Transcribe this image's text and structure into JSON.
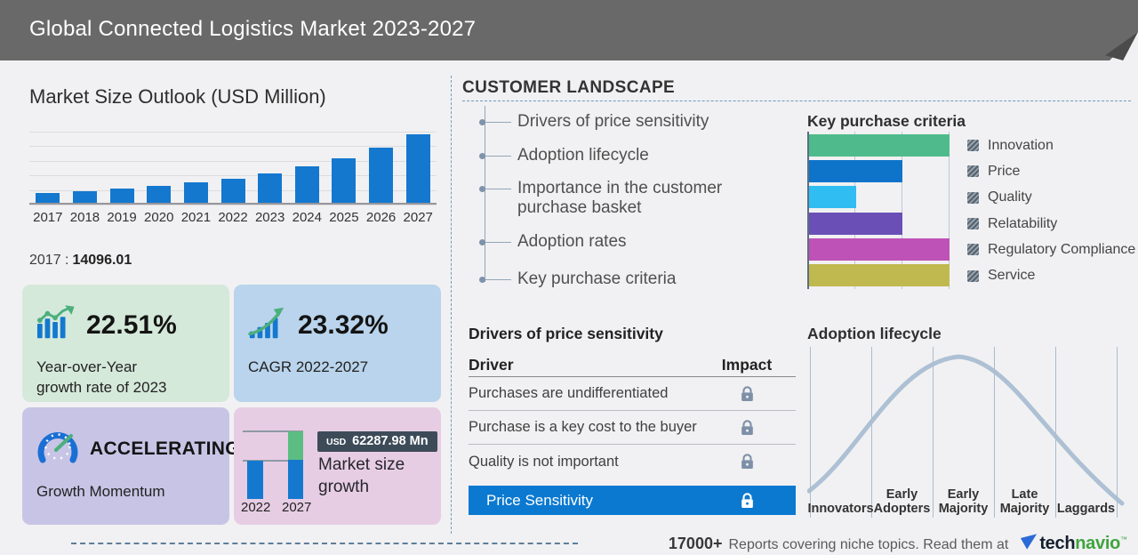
{
  "header": {
    "title": "Global Connected Logistics Market 2023-2027"
  },
  "market_size": {
    "title": "Market Size Outlook (USD Million)",
    "base_year_label": "2017 :",
    "base_year_value": "14096.01"
  },
  "chart_data": [
    {
      "id": "market-size-outlook",
      "type": "bar",
      "title": "Market Size Outlook (USD Million)",
      "categories": [
        "2017",
        "2018",
        "2019",
        "2020",
        "2021",
        "2022",
        "2023",
        "2024",
        "2025",
        "2026",
        "2027"
      ],
      "values": [
        14096.01,
        16600,
        20400,
        23800,
        28300,
        33633,
        41204,
        50600,
        62400,
        77500,
        95921
      ],
      "value_note": "2017 labeled as 14096.01; later years estimated from bar heights",
      "bar_color": "#1478cf",
      "grid": true,
      "xlabel": "",
      "ylabel": "USD Million"
    },
    {
      "id": "key-purchase-criteria",
      "type": "bar",
      "orientation": "horizontal",
      "title": "Key purchase criteria",
      "categories": [
        "Innovation",
        "Price",
        "Quality",
        "Relatability",
        "Regulatory Compliance",
        "Service"
      ],
      "values": [
        3,
        2,
        1,
        2,
        3,
        3
      ],
      "max_value": 3,
      "value_note": "relative importance read from bar lengths (1=short, 3=full width)",
      "colors": [
        "#4fbb8c",
        "#0d74c9",
        "#2fbdf2",
        "#6a50b6",
        "#bf52b6",
        "#bfb94f"
      ],
      "legend_position": "right"
    },
    {
      "id": "adoption-lifecycle",
      "type": "line",
      "title": "Adoption lifecycle",
      "curve": "bell",
      "stages": [
        "Innovators",
        "Early Adopters",
        "Early Majority",
        "Late Majority",
        "Laggards"
      ],
      "curve_color": "#adc0d4"
    },
    {
      "id": "market-size-growth",
      "type": "bar",
      "title": "Market size growth",
      "categories": [
        "2022",
        "2027"
      ],
      "annotation": "USD 62287.98 Mn",
      "note": "2027 bar shows green incremental growth above 2022 level"
    }
  ],
  "cards": {
    "yoy": {
      "value": "22.51%",
      "label": "Year-over-Year growth rate of 2023"
    },
    "cagr": {
      "value": "23.32%",
      "label": "CAGR 2022-2027"
    },
    "momentum": {
      "value": "ACCELERATING",
      "label": "Growth Momentum"
    },
    "growth": {
      "badge_currency": "USD",
      "badge_value": "62287.98 Mn",
      "label": "Market size growth",
      "start_year": "2022",
      "end_year": "2027"
    }
  },
  "customer_landscape": {
    "title": "CUSTOMER LANDSCAPE",
    "items": [
      "Drivers of price sensitivity",
      "Adoption lifecycle",
      "Importance in the customer purchase basket",
      "Adoption rates",
      "Key purchase criteria"
    ]
  },
  "price_sensitivity": {
    "title": "Drivers of price sensitivity",
    "col_driver": "Driver",
    "col_impact": "Impact",
    "rows": [
      "Purchases are undifferentiated",
      "Purchase is a key cost to the buyer",
      "Quality is not important"
    ],
    "highlight": "Price Sensitivity"
  },
  "key_purchase": {
    "title": "Key purchase criteria"
  },
  "adoption": {
    "title": "Adoption lifecycle"
  },
  "footer": {
    "count": "17000+",
    "text": "Reports covering niche topics. Read them at",
    "logo_tech": "tech",
    "logo_navio": "navio",
    "logo_tm": "™"
  },
  "colors": {
    "header_bg": "#696969",
    "page_bg": "#f1f1f3",
    "bar_blue": "#1478cf",
    "card_green": "#d5e9da",
    "card_blue": "#b9d4ec",
    "card_purple": "#c7c4e5",
    "card_pink": "#e7cde3",
    "highlight_row_blue": "#0b79d0",
    "badge_dark": "#3d4b59",
    "lock_slate": "#7e90a8",
    "curve_gray_blue": "#adc0d4",
    "logo_green": "#3fa33f",
    "logo_blue": "#2b6bd7"
  }
}
